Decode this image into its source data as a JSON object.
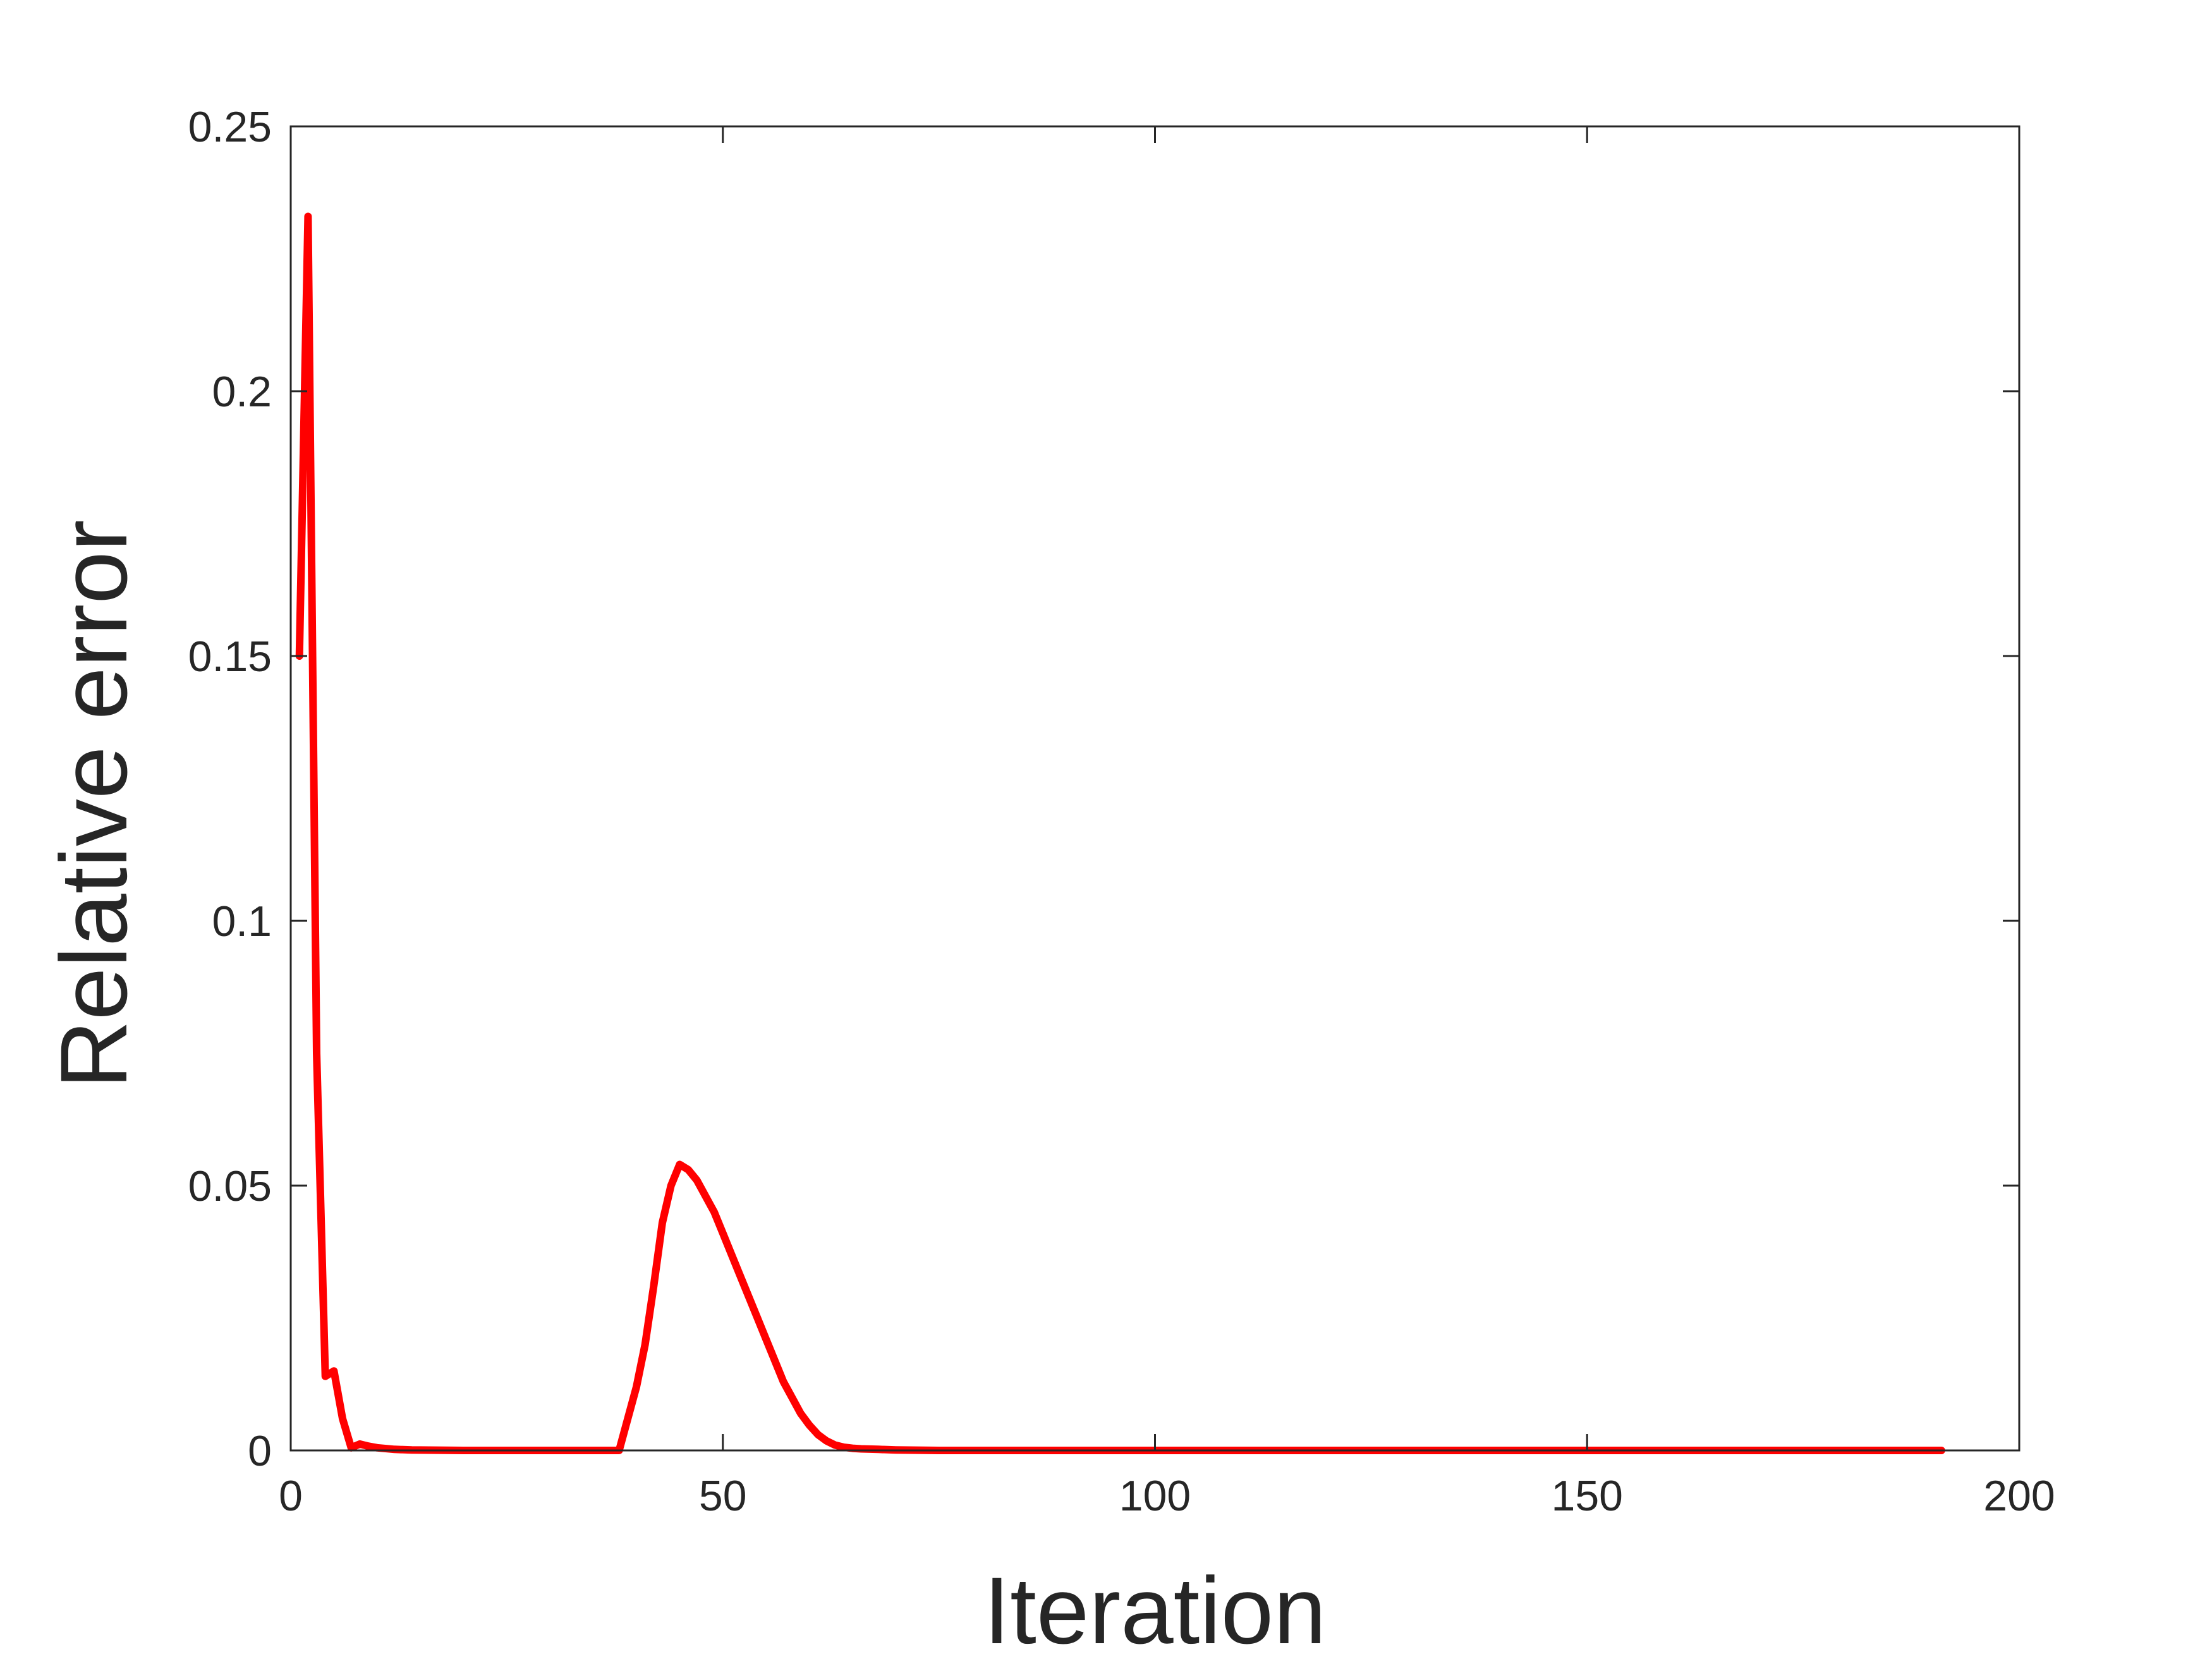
{
  "chart_data": {
    "type": "line",
    "title": "",
    "xlabel": "Iteration",
    "ylabel": "Relative error",
    "xlim": [
      0,
      200
    ],
    "ylim": [
      0,
      0.25
    ],
    "xticks": [
      0,
      50,
      100,
      150,
      200
    ],
    "xtick_labels": [
      "0",
      "50",
      "100",
      "150",
      "200"
    ],
    "yticks": [
      0,
      0.05,
      0.1,
      0.15,
      0.2,
      0.25
    ],
    "ytick_labels": [
      "0",
      "0.05",
      "0.1",
      "0.15",
      "0.2",
      "0.25"
    ],
    "grid": false,
    "box": true,
    "series": [
      {
        "color": "#ff0000",
        "x": [
          1,
          2,
          3,
          4,
          5,
          6,
          7,
          8,
          9,
          10,
          12,
          14,
          20,
          30,
          38,
          39,
          40,
          41,
          42,
          43,
          44,
          45,
          46,
          47,
          48,
          49,
          50,
          51,
          52,
          53,
          54,
          55,
          56,
          57,
          58,
          59,
          60,
          61,
          62,
          63,
          64,
          65,
          66,
          68,
          70,
          75,
          80,
          100,
          150,
          191
        ],
        "y": [
          0.15,
          0.233,
          0.075,
          0.014,
          0.015,
          0.006,
          0.0005,
          0.0012,
          0.0008,
          0.0005,
          0.0002,
          0.0001,
          0.0,
          0.0,
          0.0,
          0.006,
          0.012,
          0.02,
          0.031,
          0.043,
          0.05,
          0.054,
          0.053,
          0.051,
          0.048,
          0.045,
          0.041,
          0.037,
          0.033,
          0.029,
          0.025,
          0.021,
          0.017,
          0.013,
          0.01,
          0.007,
          0.0048,
          0.003,
          0.0018,
          0.001,
          0.0006,
          0.0004,
          0.0003,
          0.0002,
          0.0001,
          0.0,
          0.0,
          0.0,
          0.0,
          0.0
        ]
      }
    ]
  }
}
